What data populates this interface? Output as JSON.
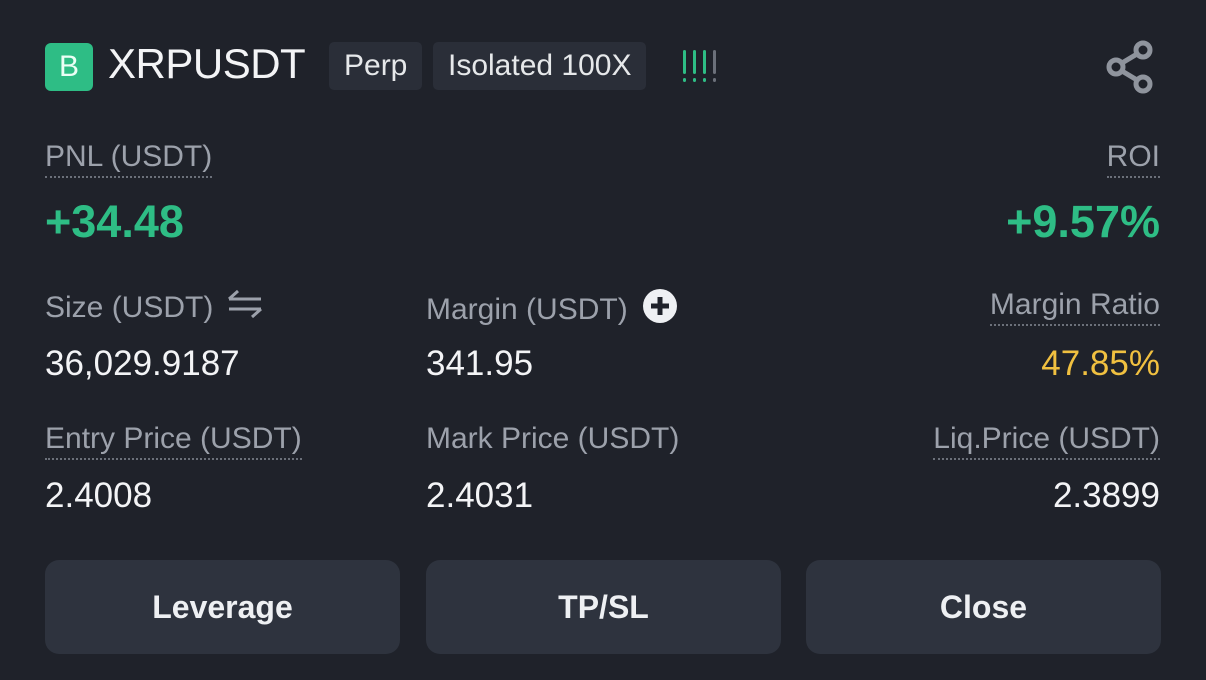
{
  "header": {
    "logo_letter": "B",
    "symbol": "XRPUSDT",
    "type_tag": "Perp",
    "margin_tag": "Isolated 100X",
    "risk_level": {
      "filled": 3,
      "total": 4
    },
    "share_icon": "share-icon"
  },
  "pnl": {
    "label": "PNL (USDT)",
    "value": "+34.48"
  },
  "roi": {
    "label": "ROI",
    "value": "+9.57%"
  },
  "size": {
    "label": "Size (USDT)",
    "value": "36,029.9187",
    "icon": "swap-arrows-icon"
  },
  "margin": {
    "label": "Margin (USDT)",
    "value": "341.95",
    "icon": "plus-circle-icon"
  },
  "margin_ratio": {
    "label": "Margin Ratio",
    "value": "47.85%"
  },
  "entry_price": {
    "label": "Entry Price (USDT)",
    "value": "2.4008"
  },
  "mark_price": {
    "label": "Mark Price (USDT)",
    "value": "2.4031"
  },
  "liq_price": {
    "label": "Liq.Price (USDT)",
    "value": "2.3899"
  },
  "buttons": {
    "leverage": "Leverage",
    "tpsl": "TP/SL",
    "close": "Close"
  },
  "colors": {
    "positive": "#2ebd85",
    "warning": "#f0c040",
    "background": "#1f222a"
  }
}
